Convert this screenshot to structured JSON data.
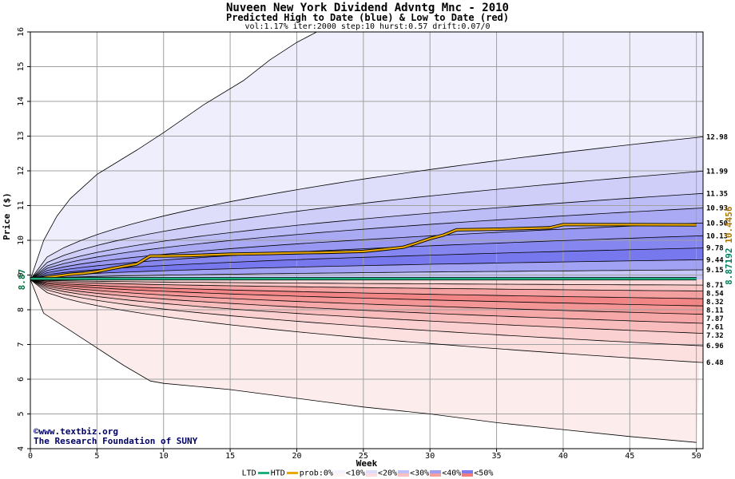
{
  "chart_data": {
    "type": "area",
    "title": "Nuveen New York Dividend Advntg Mnc - 2010",
    "subtitle": "Predicted High to Date (blue) &  Low to Date (red)",
    "params": "vol:1.17% iter:2000 step:10 hurst:0.57 drift:0.07/0",
    "xlabel": "Week",
    "ylabel": "Price ($)",
    "xlim": [
      0,
      50.5
    ],
    "ylim": [
      4,
      16
    ],
    "xticks": [
      0,
      5,
      10,
      15,
      20,
      25,
      30,
      35,
      40,
      45,
      50
    ],
    "yticks": [
      4,
      5,
      6,
      7,
      8,
      9,
      10,
      11,
      12,
      13,
      14,
      15,
      16
    ],
    "grid": true,
    "start_price": 8.87,
    "start_label": "8.87",
    "high_band_ends": [
      12.98,
      11.99,
      11.35,
      10.93,
      10.5,
      10.13,
      9.78,
      9.44,
      9.15
    ],
    "high_band_labels": [
      "12.98",
      "11.99",
      "11.35",
      "10.93",
      "10.50",
      "10.13",
      "9.78",
      "9.44",
      "9.15"
    ],
    "low_band_ends": [
      8.71,
      8.54,
      8.32,
      8.11,
      7.87,
      7.61,
      7.32,
      6.96,
      6.48
    ],
    "low_band_labels": [
      "8.71",
      "8.54",
      "8.32",
      "8.11",
      "7.87",
      "7.61",
      "7.32",
      "6.96",
      "6.48"
    ],
    "outer_high_path": {
      "x": [
        0,
        1,
        2,
        3,
        5,
        8,
        10,
        13,
        16,
        18,
        20,
        21.5
      ],
      "y": [
        8.87,
        10.0,
        10.7,
        11.2,
        11.9,
        12.6,
        13.1,
        13.9,
        14.6,
        15.2,
        15.7,
        16.0
      ]
    },
    "outer_low_path": {
      "x": [
        0,
        1,
        3,
        5,
        7,
        9,
        10,
        15,
        20,
        25,
        30,
        35,
        40,
        45,
        50
      ],
      "y": [
        8.87,
        7.9,
        7.4,
        6.9,
        6.4,
        5.95,
        5.88,
        5.7,
        5.45,
        5.2,
        5.0,
        4.75,
        4.55,
        4.35,
        4.18
      ]
    },
    "series": [
      {
        "name": "HTD",
        "x": [
          0,
          1,
          2,
          3,
          4,
          5,
          6,
          7,
          8,
          9,
          10,
          12,
          15,
          18,
          20,
          22,
          25,
          26,
          28,
          29,
          30,
          31,
          32,
          35,
          39,
          40,
          42,
          45,
          50
        ],
        "y": [
          8.87,
          8.92,
          8.97,
          9.02,
          9.05,
          9.1,
          9.18,
          9.25,
          9.32,
          9.55,
          9.55,
          9.56,
          9.6,
          9.62,
          9.64,
          9.65,
          9.68,
          9.72,
          9.8,
          9.92,
          10.05,
          10.15,
          10.3,
          10.32,
          10.36,
          10.45,
          10.45,
          10.45,
          10.4456
        ]
      },
      {
        "name": "LTD",
        "x": [
          0,
          50
        ],
        "y": [
          8.87,
          8.87192
        ]
      }
    ],
    "end_label_htd": "10.4456",
    "end_label_ltd": "8.87192",
    "colors": {
      "htd": "#e8a800",
      "ltd": "#20b080",
      "blue_band": "#6a6af0",
      "red_band": "#f06a6a"
    }
  },
  "credit": {
    "line1": "www.textbiz.org",
    "line2": "The Research Foundation of SUNY",
    "copyright_symbol": "©"
  },
  "legend": {
    "ltd_label": "LTD",
    "htd_label": "HTD",
    "prob_label": "prob:0%",
    "bins": [
      "<10%",
      "<20%",
      "<30%",
      "<40%",
      "<50%"
    ],
    "bin_colors_blue": [
      "#f4f4fe",
      "#dcdcfc",
      "#c0c0f8",
      "#9e9ef4",
      "#7c7cf0"
    ],
    "bin_colors_red": [
      "#fef4f4",
      "#fcdcdc",
      "#f8c0c0",
      "#f49e9e",
      "#f07c7c"
    ]
  }
}
